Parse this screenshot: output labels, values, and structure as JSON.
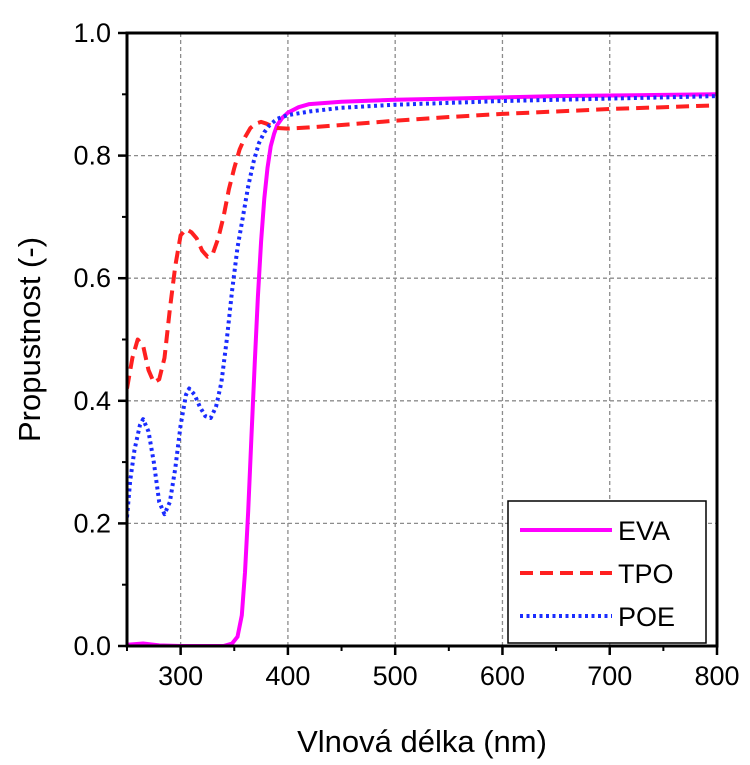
{
  "chart_data": {
    "type": "line",
    "title": "",
    "xlabel": "Vlnová délka (nm)",
    "ylabel": "Propustnost (-)",
    "xlim": [
      250,
      800
    ],
    "ylim": [
      0.0,
      1.0
    ],
    "x_ticks": [
      300,
      400,
      500,
      600,
      700,
      800
    ],
    "y_ticks": [
      0.0,
      0.2,
      0.4,
      0.6,
      0.8,
      1.0
    ],
    "x_tick_labels": [
      "300",
      "400",
      "500",
      "600",
      "700",
      "800"
    ],
    "y_tick_labels": [
      "0.0",
      "0.2",
      "0.4",
      "0.6",
      "0.8",
      "1.0"
    ],
    "grid": true,
    "legend_position": "bottom-right",
    "series": [
      {
        "name": "EVA",
        "color": "#ff00ff",
        "line_style": "solid",
        "points": [
          [
            250,
            0.002
          ],
          [
            265,
            0.004
          ],
          [
            280,
            0.001
          ],
          [
            300,
            0.0
          ],
          [
            320,
            0.0
          ],
          [
            340,
            0.0
          ],
          [
            348,
            0.004
          ],
          [
            353,
            0.015
          ],
          [
            357,
            0.05
          ],
          [
            360,
            0.12
          ],
          [
            363,
            0.22
          ],
          [
            366,
            0.34
          ],
          [
            369,
            0.46
          ],
          [
            372,
            0.57
          ],
          [
            375,
            0.66
          ],
          [
            378,
            0.73
          ],
          [
            381,
            0.78
          ],
          [
            384,
            0.815
          ],
          [
            387,
            0.835
          ],
          [
            390,
            0.85
          ],
          [
            395,
            0.862
          ],
          [
            400,
            0.87
          ],
          [
            410,
            0.879
          ],
          [
            420,
            0.884
          ],
          [
            450,
            0.888
          ],
          [
            500,
            0.891
          ],
          [
            550,
            0.893
          ],
          [
            600,
            0.895
          ],
          [
            650,
            0.897
          ],
          [
            700,
            0.898
          ],
          [
            750,
            0.899
          ],
          [
            800,
            0.9
          ]
        ]
      },
      {
        "name": "TPO",
        "color": "#ff2020",
        "line_style": "dashed",
        "points": [
          [
            250,
            0.42
          ],
          [
            255,
            0.47
          ],
          [
            260,
            0.5
          ],
          [
            265,
            0.49
          ],
          [
            270,
            0.45
          ],
          [
            275,
            0.43
          ],
          [
            280,
            0.435
          ],
          [
            285,
            0.47
          ],
          [
            290,
            0.55
          ],
          [
            295,
            0.62
          ],
          [
            300,
            0.67
          ],
          [
            305,
            0.68
          ],
          [
            310,
            0.675
          ],
          [
            315,
            0.665
          ],
          [
            320,
            0.645
          ],
          [
            325,
            0.635
          ],
          [
            330,
            0.64
          ],
          [
            335,
            0.665
          ],
          [
            340,
            0.7
          ],
          [
            345,
            0.745
          ],
          [
            350,
            0.78
          ],
          [
            355,
            0.81
          ],
          [
            360,
            0.83
          ],
          [
            365,
            0.845
          ],
          [
            370,
            0.852
          ],
          [
            375,
            0.855
          ],
          [
            380,
            0.852
          ],
          [
            385,
            0.848
          ],
          [
            390,
            0.845
          ],
          [
            400,
            0.844
          ],
          [
            420,
            0.846
          ],
          [
            450,
            0.85
          ],
          [
            500,
            0.857
          ],
          [
            550,
            0.863
          ],
          [
            600,
            0.868
          ],
          [
            650,
            0.872
          ],
          [
            700,
            0.876
          ],
          [
            750,
            0.879
          ],
          [
            800,
            0.882
          ]
        ]
      },
      {
        "name": "POE",
        "color": "#1a2cff",
        "line_style": "dotted",
        "points": [
          [
            250,
            0.21
          ],
          [
            253,
            0.27
          ],
          [
            257,
            0.32
          ],
          [
            262,
            0.36
          ],
          [
            265,
            0.37
          ],
          [
            270,
            0.35
          ],
          [
            275,
            0.3
          ],
          [
            280,
            0.235
          ],
          [
            285,
            0.215
          ],
          [
            290,
            0.235
          ],
          [
            295,
            0.29
          ],
          [
            300,
            0.36
          ],
          [
            305,
            0.41
          ],
          [
            308,
            0.42
          ],
          [
            313,
            0.41
          ],
          [
            318,
            0.39
          ],
          [
            323,
            0.375
          ],
          [
            328,
            0.372
          ],
          [
            333,
            0.39
          ],
          [
            338,
            0.43
          ],
          [
            343,
            0.5
          ],
          [
            348,
            0.58
          ],
          [
            353,
            0.65
          ],
          [
            358,
            0.7
          ],
          [
            363,
            0.75
          ],
          [
            368,
            0.79
          ],
          [
            373,
            0.82
          ],
          [
            378,
            0.838
          ],
          [
            383,
            0.85
          ],
          [
            390,
            0.86
          ],
          [
            400,
            0.866
          ],
          [
            420,
            0.872
          ],
          [
            450,
            0.878
          ],
          [
            500,
            0.883
          ],
          [
            550,
            0.886
          ],
          [
            600,
            0.889
          ],
          [
            650,
            0.891
          ],
          [
            700,
            0.893
          ],
          [
            750,
            0.895
          ],
          [
            800,
            0.897
          ]
        ]
      }
    ]
  }
}
